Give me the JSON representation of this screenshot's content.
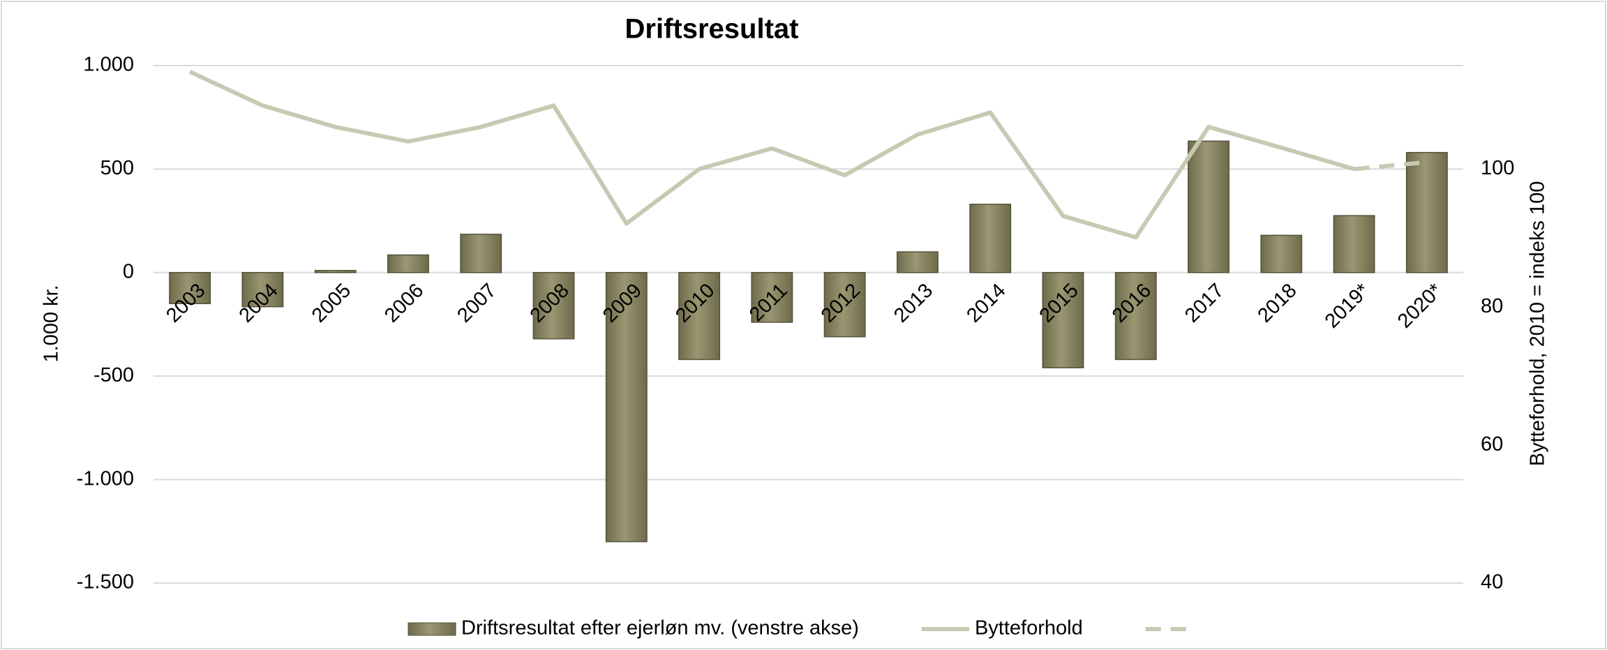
{
  "chart_data": {
    "type": "bar_line",
    "title": "Driftsresultat",
    "y_label": "1.000 kr.",
    "y2_label": "Bytteforhold, 2010 = indeks 100",
    "categories": [
      "2003",
      "2004",
      "2005",
      "2006",
      "2007",
      "2008",
      "2009",
      "2010",
      "2011",
      "2012",
      "2013",
      "2014",
      "2015",
      "2016",
      "2017",
      "2018",
      "2019*",
      "2020*"
    ],
    "series": [
      {
        "name": "Driftsresultat efter ejerløn mv. (venstre akse)",
        "kind": "bar",
        "color": "#8a8763",
        "values": [
          -150,
          -165,
          10,
          85,
          185,
          -320,
          -1300,
          -420,
          -240,
          -310,
          100,
          330,
          -460,
          -420,
          635,
          180,
          275,
          580
        ]
      },
      {
        "name": "Bytteforhold",
        "kind": "line",
        "axis": "y2",
        "color": "#c9c9b3",
        "values": [
          114.1,
          109.2,
          106.1,
          104,
          106.1,
          109.2,
          92.1,
          100,
          103,
          99.1,
          105,
          108.2,
          93.2,
          90.1,
          106.1,
          103.1,
          100,
          null
        ]
      },
      {
        "kind": "line",
        "axis": "y2",
        "color": "#c9c9b3",
        "dashed": true,
        "values": [
          null,
          null,
          null,
          null,
          null,
          null,
          null,
          null,
          null,
          null,
          null,
          null,
          null,
          null,
          null,
          null,
          100,
          101
        ]
      }
    ],
    "ylim": [
      -1500,
      1000
    ],
    "yticks": [
      {
        "value": -1500,
        "label": "-1.500"
      },
      {
        "value": -1000,
        "label": "-1.000"
      },
      -500,
      0,
      500,
      {
        "value": 1000,
        "label": "1.000"
      }
    ],
    "y2lim": [
      40,
      115
    ],
    "y2ticks": [
      40,
      60,
      80,
      100
    ],
    "grid": true,
    "legend": "bottom"
  }
}
